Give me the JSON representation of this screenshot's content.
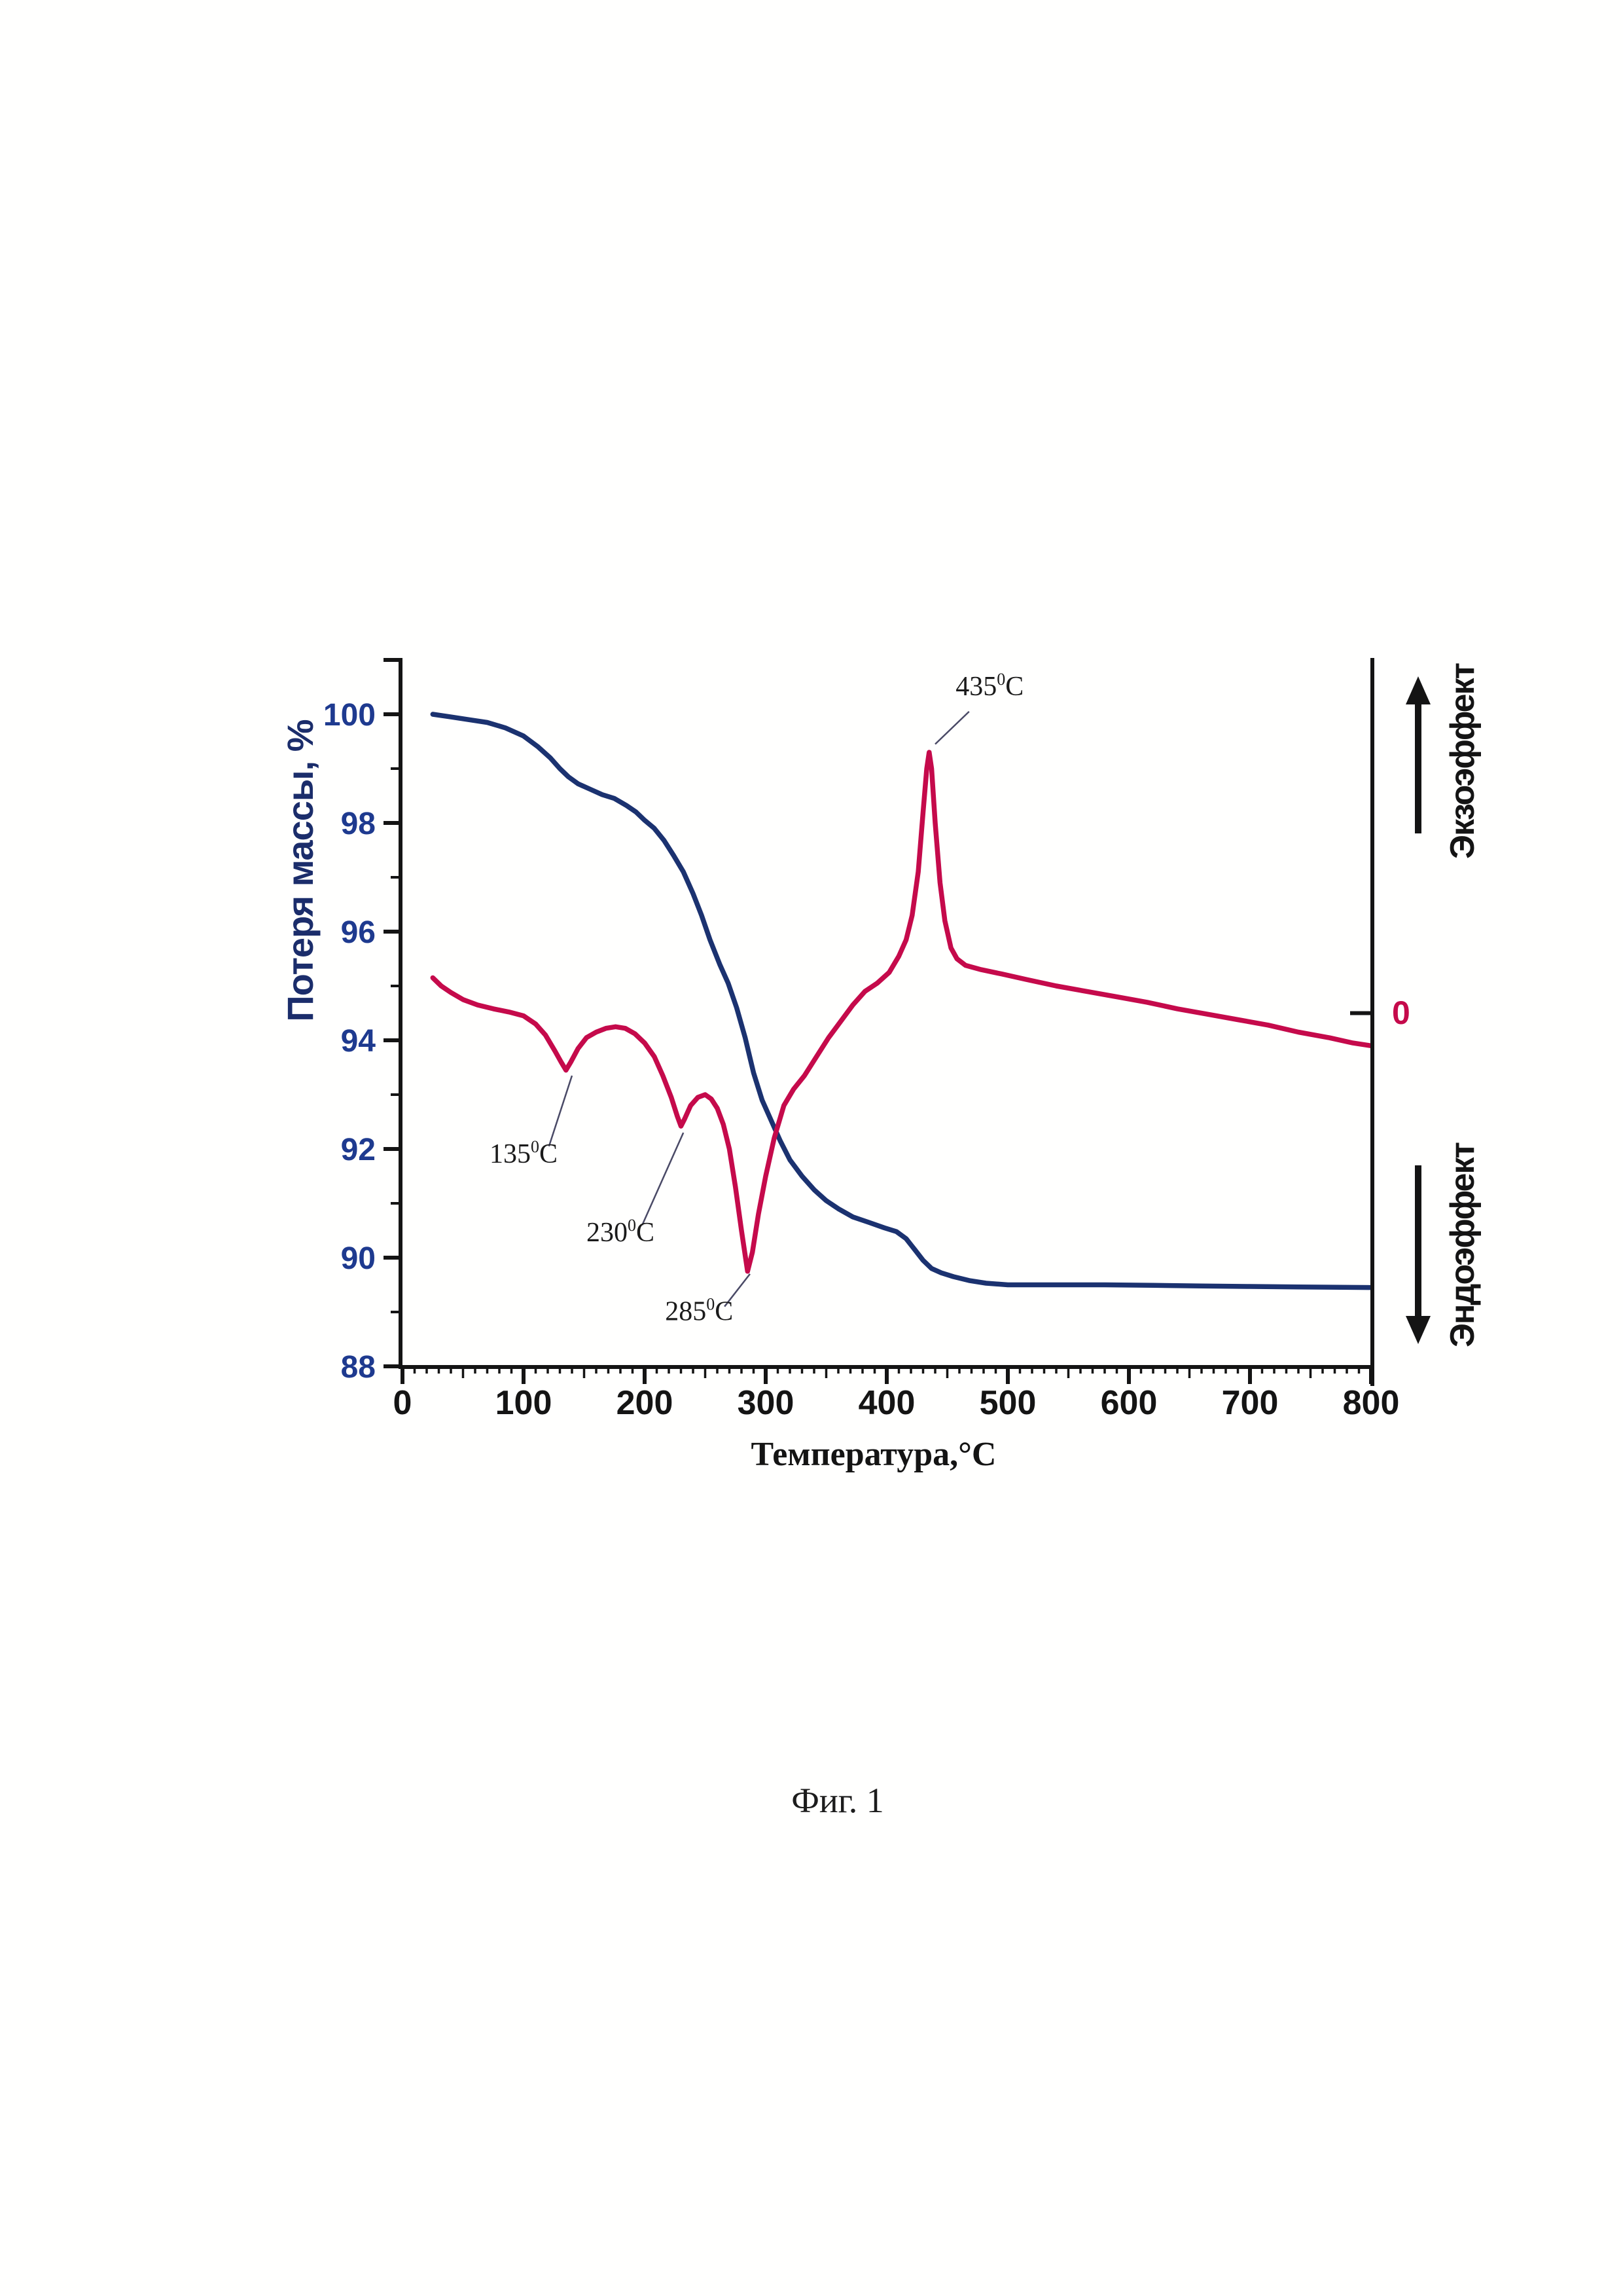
{
  "page": {
    "caption": "Фиг. 1"
  },
  "chart_data": {
    "type": "line",
    "title": "",
    "xlabel": "Температура,°С",
    "ylabel": "Потеря массы, %",
    "xlim": [
      0,
      800
    ],
    "ylim": [
      88,
      101
    ],
    "grid": false,
    "legend_position": "none",
    "x_ticks_labeled": [
      0,
      100,
      200,
      300,
      400,
      500,
      600,
      700,
      800
    ],
    "x_medium_tick_step": 50,
    "x_minor_tick_step": 10,
    "y_ticks_labeled": [
      100,
      98,
      96,
      94,
      92,
      90,
      88
    ],
    "y_minor_ticks": [
      99,
      97,
      95,
      93,
      91,
      89
    ],
    "y_top_unlabeled_tick": 101,
    "colors": {
      "tg_curve": "#1b3270",
      "dta_curve": "#c50a4b",
      "axis": "#141414",
      "y_tick_labels": "#1e3a8f",
      "zero_label": "#c50a4b",
      "leader_line": "#4a4a66"
    },
    "right_axis": {
      "zero_label": "0",
      "zero_at_mass_percent": 94.5,
      "exo_label": "Экзоэффект",
      "endo_label": "Эндоэффект"
    },
    "series": [
      {
        "name": "ТГ — потеря массы",
        "color": "#1b3270",
        "points": [
          [
            25,
            100.0
          ],
          [
            40,
            99.95
          ],
          [
            55,
            99.9
          ],
          [
            70,
            99.85
          ],
          [
            85,
            99.75
          ],
          [
            100,
            99.6
          ],
          [
            112,
            99.4
          ],
          [
            122,
            99.2
          ],
          [
            130,
            99.0
          ],
          [
            137,
            98.85
          ],
          [
            145,
            98.72
          ],
          [
            155,
            98.62
          ],
          [
            165,
            98.52
          ],
          [
            175,
            98.45
          ],
          [
            185,
            98.32
          ],
          [
            193,
            98.2
          ],
          [
            200,
            98.05
          ],
          [
            208,
            97.9
          ],
          [
            216,
            97.68
          ],
          [
            224,
            97.4
          ],
          [
            232,
            97.1
          ],
          [
            240,
            96.7
          ],
          [
            247,
            96.3
          ],
          [
            254,
            95.85
          ],
          [
            262,
            95.4
          ],
          [
            269,
            95.05
          ],
          [
            276,
            94.6
          ],
          [
            283,
            94.05
          ],
          [
            290,
            93.4
          ],
          [
            297,
            92.9
          ],
          [
            305,
            92.5
          ],
          [
            312,
            92.15
          ],
          [
            320,
            91.8
          ],
          [
            330,
            91.5
          ],
          [
            340,
            91.25
          ],
          [
            350,
            91.05
          ],
          [
            360,
            90.9
          ],
          [
            372,
            90.75
          ],
          [
            385,
            90.65
          ],
          [
            398,
            90.55
          ],
          [
            408,
            90.48
          ],
          [
            416,
            90.35
          ],
          [
            423,
            90.15
          ],
          [
            430,
            89.95
          ],
          [
            437,
            89.8
          ],
          [
            445,
            89.72
          ],
          [
            455,
            89.65
          ],
          [
            468,
            89.58
          ],
          [
            482,
            89.53
          ],
          [
            500,
            89.5
          ],
          [
            540,
            89.5
          ],
          [
            580,
            89.5
          ],
          [
            620,
            89.49
          ],
          [
            660,
            89.48
          ],
          [
            700,
            89.47
          ],
          [
            740,
            89.46
          ],
          [
            800,
            89.45
          ]
        ]
      },
      {
        "name": "ДТА",
        "color": "#c50a4b",
        "points": [
          [
            25,
            95.15
          ],
          [
            32,
            95.0
          ],
          [
            40,
            94.88
          ],
          [
            50,
            94.75
          ],
          [
            62,
            94.65
          ],
          [
            75,
            94.58
          ],
          [
            88,
            94.52
          ],
          [
            100,
            94.45
          ],
          [
            110,
            94.3
          ],
          [
            118,
            94.1
          ],
          [
            126,
            93.8
          ],
          [
            131,
            93.6
          ],
          [
            135,
            93.45
          ],
          [
            139,
            93.6
          ],
          [
            145,
            93.85
          ],
          [
            152,
            94.05
          ],
          [
            160,
            94.15
          ],
          [
            168,
            94.22
          ],
          [
            176,
            94.25
          ],
          [
            184,
            94.22
          ],
          [
            192,
            94.12
          ],
          [
            200,
            93.95
          ],
          [
            208,
            93.7
          ],
          [
            215,
            93.35
          ],
          [
            222,
            92.95
          ],
          [
            227,
            92.6
          ],
          [
            230,
            92.42
          ],
          [
            233,
            92.55
          ],
          [
            238,
            92.8
          ],
          [
            244,
            92.95
          ],
          [
            250,
            93.0
          ],
          [
            255,
            92.92
          ],
          [
            260,
            92.75
          ],
          [
            265,
            92.45
          ],
          [
            270,
            92.0
          ],
          [
            275,
            91.3
          ],
          [
            280,
            90.5
          ],
          [
            285,
            89.75
          ],
          [
            289,
            90.1
          ],
          [
            294,
            90.8
          ],
          [
            300,
            91.5
          ],
          [
            307,
            92.2
          ],
          [
            315,
            92.8
          ],
          [
            323,
            93.1
          ],
          [
            332,
            93.35
          ],
          [
            342,
            93.7
          ],
          [
            352,
            94.05
          ],
          [
            362,
            94.35
          ],
          [
            372,
            94.65
          ],
          [
            382,
            94.9
          ],
          [
            392,
            95.05
          ],
          [
            402,
            95.25
          ],
          [
            410,
            95.55
          ],
          [
            416,
            95.85
          ],
          [
            421,
            96.3
          ],
          [
            426,
            97.1
          ],
          [
            430,
            98.2
          ],
          [
            433,
            99.0
          ],
          [
            435,
            99.3
          ],
          [
            437,
            99.0
          ],
          [
            440,
            98.0
          ],
          [
            444,
            96.9
          ],
          [
            448,
            96.2
          ],
          [
            453,
            95.7
          ],
          [
            458,
            95.5
          ],
          [
            465,
            95.38
          ],
          [
            478,
            95.3
          ],
          [
            495,
            95.22
          ],
          [
            515,
            95.12
          ],
          [
            540,
            95.0
          ],
          [
            565,
            94.9
          ],
          [
            590,
            94.8
          ],
          [
            615,
            94.7
          ],
          [
            640,
            94.58
          ],
          [
            665,
            94.48
          ],
          [
            690,
            94.38
          ],
          [
            715,
            94.28
          ],
          [
            740,
            94.15
          ],
          [
            765,
            94.05
          ],
          [
            785,
            93.95
          ],
          [
            800,
            93.9
          ]
        ]
      }
    ],
    "annotations": [
      {
        "value": "135",
        "sup": "0",
        "unit": "C",
        "text_at": [
          100,
          91.75
        ],
        "line": [
          [
            121,
            92.05
          ],
          [
            140,
            93.35
          ]
        ]
      },
      {
        "value": "230",
        "sup": "0",
        "unit": "C",
        "text_at": [
          180,
          90.3
        ],
        "line": [
          [
            198,
            90.6
          ],
          [
            232,
            92.3
          ]
        ]
      },
      {
        "value": "285",
        "sup": "0",
        "unit": "C",
        "text_at": [
          245,
          88.85
        ],
        "line": [
          [
            266,
            89.1
          ],
          [
            287,
            89.7
          ]
        ]
      },
      {
        "value": "435",
        "sup": "0",
        "unit": "C",
        "text_at": [
          485,
          100.35
        ],
        "line": [
          [
            468,
            100.05
          ],
          [
            440,
            99.45
          ]
        ]
      }
    ]
  }
}
